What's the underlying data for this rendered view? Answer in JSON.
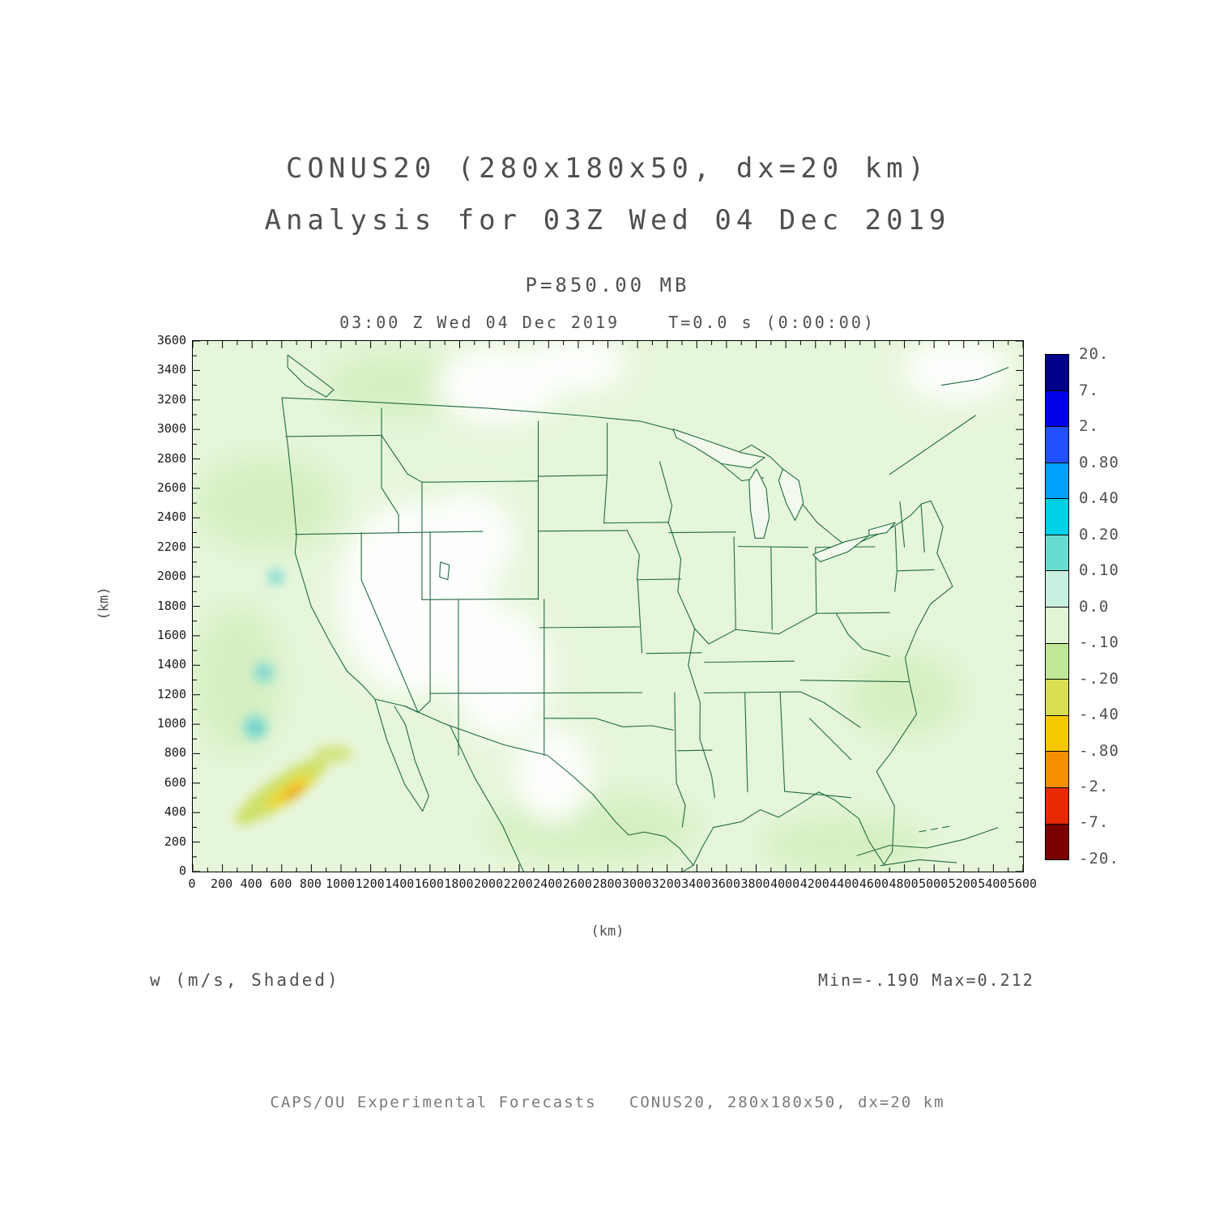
{
  "header": {
    "title_line1": "CONUS20 (280x180x50, dx=20 km)",
    "title_line2": "Analysis for 03Z Wed 04 Dec 2019",
    "level_label": "P=850.00 MB",
    "time_label": "03:00 Z Wed 04 Dec 2019    T=0.0 s (0:00:00)"
  },
  "annotations": {
    "field_label": "w (m/s, Shaded)",
    "minmax_label": "Min=-.190 Max=0.212"
  },
  "footer": {
    "credit": "CAPS/OU Experimental Forecasts   CONUS20, 280x180x50, dx=20 km"
  },
  "chart_data": {
    "type": "heatmap",
    "title": "CONUS20 (280x180x50, dx=20 km)",
    "subtitle": "Analysis for 03Z Wed 04 Dec 2019",
    "field": "w",
    "units": "m/s",
    "shading": "Shaded",
    "pressure_level": "P=850.00 MB",
    "valid_time": "03:00 Z Wed 04 Dec 2019",
    "forecast_time": "T=0.0 s (0:00:00)",
    "model": "CONUS20",
    "grid": "280x180x50",
    "dx": "20 km",
    "min": -0.19,
    "max": 0.212,
    "x_axis": {
      "label": "(km)",
      "range": [
        0,
        5600
      ],
      "tick_interval": 200,
      "tick_labels": [
        "0",
        "200",
        "400",
        "600",
        "800",
        "1000",
        "1200",
        "1400",
        "1600",
        "1800",
        "2000",
        "2200",
        "2400",
        "2600",
        "2800",
        "3000",
        "3200",
        "3400",
        "3600",
        "3800",
        "4000",
        "4200",
        "4400",
        "4600",
        "4800",
        "5000",
        "5200",
        "5400",
        "5600"
      ]
    },
    "y_axis": {
      "label": "(km)",
      "range": [
        0,
        3600
      ],
      "tick_interval": 200,
      "tick_labels": [
        "0",
        "200",
        "400",
        "600",
        "800",
        "1000",
        "1200",
        "1400",
        "1600",
        "1800",
        "2000",
        "2200",
        "2400",
        "2600",
        "2800",
        "3000",
        "3200",
        "3400",
        "3600"
      ]
    },
    "colorbar": {
      "position": "right",
      "tick_labels": [
        "20.",
        "7.",
        "2.",
        "0.80",
        "0.40",
        "0.20",
        "0.10",
        "0.0",
        "-.10",
        "-.20",
        "-.40",
        "-.80",
        "-2.",
        "-7.",
        "-20."
      ],
      "colors": [
        "#00008b",
        "#0000e8",
        "#2050ff",
        "#00a0ff",
        "#00d0e8",
        "#66dcd0",
        "#c8f0e0",
        "#e2f6d6",
        "#bfe896",
        "#dade50",
        "#f5c800",
        "#f58f00",
        "#e82800",
        "#7a0000"
      ]
    },
    "map_colors": {
      "state_border": "#1f6b3f",
      "base_shade": "#e6f6da",
      "no_shade": "#ffffff",
      "mottle_shade": "#d2eebc"
    }
  }
}
